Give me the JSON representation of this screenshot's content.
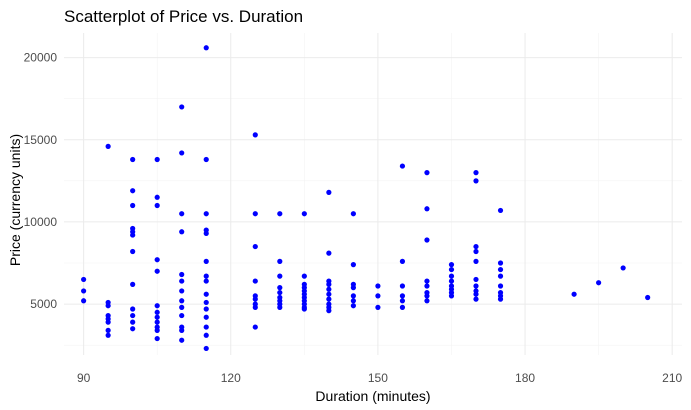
{
  "chart_data": {
    "type": "scatter",
    "title": "Scatterplot of Price vs. Duration",
    "xlabel": "Duration (minutes)",
    "ylabel": "Price (currency units)",
    "xlim": [
      86,
      212
    ],
    "ylim": [
      1900,
      21500
    ],
    "x_ticks": [
      90,
      120,
      150,
      180,
      210
    ],
    "y_ticks": [
      5000,
      10000,
      15000,
      20000
    ],
    "grid": true,
    "point_color": "#0000ff",
    "points": [
      {
        "x": 90,
        "y": 6500
      },
      {
        "x": 90,
        "y": 5800
      },
      {
        "x": 90,
        "y": 5200
      },
      {
        "x": 95,
        "y": 14600
      },
      {
        "x": 95,
        "y": 5100
      },
      {
        "x": 95,
        "y": 4900
      },
      {
        "x": 95,
        "y": 4300
      },
      {
        "x": 95,
        "y": 4100
      },
      {
        "x": 95,
        "y": 3900
      },
      {
        "x": 95,
        "y": 3400
      },
      {
        "x": 95,
        "y": 3100
      },
      {
        "x": 100,
        "y": 13800
      },
      {
        "x": 100,
        "y": 11900
      },
      {
        "x": 100,
        "y": 11000
      },
      {
        "x": 100,
        "y": 9600
      },
      {
        "x": 100,
        "y": 9400
      },
      {
        "x": 100,
        "y": 9200
      },
      {
        "x": 100,
        "y": 8200
      },
      {
        "x": 100,
        "y": 6200
      },
      {
        "x": 100,
        "y": 4700
      },
      {
        "x": 100,
        "y": 4300
      },
      {
        "x": 100,
        "y": 3900
      },
      {
        "x": 100,
        "y": 3500
      },
      {
        "x": 105,
        "y": 13800
      },
      {
        "x": 105,
        "y": 11500
      },
      {
        "x": 105,
        "y": 11000
      },
      {
        "x": 105,
        "y": 7700
      },
      {
        "x": 105,
        "y": 7000
      },
      {
        "x": 105,
        "y": 4900
      },
      {
        "x": 105,
        "y": 4500
      },
      {
        "x": 105,
        "y": 4200
      },
      {
        "x": 105,
        "y": 3900
      },
      {
        "x": 105,
        "y": 3600
      },
      {
        "x": 105,
        "y": 3400
      },
      {
        "x": 105,
        "y": 2900
      },
      {
        "x": 110,
        "y": 17000
      },
      {
        "x": 110,
        "y": 14200
      },
      {
        "x": 110,
        "y": 10500
      },
      {
        "x": 110,
        "y": 9400
      },
      {
        "x": 110,
        "y": 6800
      },
      {
        "x": 110,
        "y": 6400
      },
      {
        "x": 110,
        "y": 5800
      },
      {
        "x": 110,
        "y": 5200
      },
      {
        "x": 110,
        "y": 4800
      },
      {
        "x": 110,
        "y": 4300
      },
      {
        "x": 110,
        "y": 3600
      },
      {
        "x": 110,
        "y": 3400
      },
      {
        "x": 110,
        "y": 2800
      },
      {
        "x": 115,
        "y": 20600
      },
      {
        "x": 115,
        "y": 13800
      },
      {
        "x": 115,
        "y": 10500
      },
      {
        "x": 115,
        "y": 9500
      },
      {
        "x": 115,
        "y": 9300
      },
      {
        "x": 115,
        "y": 7600
      },
      {
        "x": 115,
        "y": 6700
      },
      {
        "x": 115,
        "y": 6400
      },
      {
        "x": 115,
        "y": 5600
      },
      {
        "x": 115,
        "y": 5100
      },
      {
        "x": 115,
        "y": 4700
      },
      {
        "x": 115,
        "y": 4200
      },
      {
        "x": 115,
        "y": 3600
      },
      {
        "x": 115,
        "y": 3100
      },
      {
        "x": 115,
        "y": 2300
      },
      {
        "x": 125,
        "y": 15300
      },
      {
        "x": 125,
        "y": 10500
      },
      {
        "x": 125,
        "y": 8500
      },
      {
        "x": 125,
        "y": 6400
      },
      {
        "x": 125,
        "y": 5500
      },
      {
        "x": 125,
        "y": 5300
      },
      {
        "x": 125,
        "y": 5000
      },
      {
        "x": 125,
        "y": 4800
      },
      {
        "x": 125,
        "y": 3600
      },
      {
        "x": 130,
        "y": 10500
      },
      {
        "x": 130,
        "y": 7600
      },
      {
        "x": 130,
        "y": 6700
      },
      {
        "x": 130,
        "y": 6000
      },
      {
        "x": 130,
        "y": 5700
      },
      {
        "x": 130,
        "y": 5400
      },
      {
        "x": 130,
        "y": 5200
      },
      {
        "x": 130,
        "y": 5000
      },
      {
        "x": 130,
        "y": 4800
      },
      {
        "x": 135,
        "y": 10500
      },
      {
        "x": 135,
        "y": 6700
      },
      {
        "x": 135,
        "y": 6200
      },
      {
        "x": 135,
        "y": 6000
      },
      {
        "x": 135,
        "y": 5800
      },
      {
        "x": 135,
        "y": 5600
      },
      {
        "x": 135,
        "y": 5400
      },
      {
        "x": 135,
        "y": 5200
      },
      {
        "x": 135,
        "y": 5000
      },
      {
        "x": 135,
        "y": 4800
      },
      {
        "x": 135,
        "y": 4700
      },
      {
        "x": 140,
        "y": 11800
      },
      {
        "x": 140,
        "y": 8100
      },
      {
        "x": 140,
        "y": 6400
      },
      {
        "x": 140,
        "y": 6200
      },
      {
        "x": 140,
        "y": 5900
      },
      {
        "x": 140,
        "y": 5600
      },
      {
        "x": 140,
        "y": 5300
      },
      {
        "x": 140,
        "y": 5000
      },
      {
        "x": 140,
        "y": 4800
      },
      {
        "x": 140,
        "y": 4600
      },
      {
        "x": 145,
        "y": 10500
      },
      {
        "x": 145,
        "y": 7400
      },
      {
        "x": 145,
        "y": 6200
      },
      {
        "x": 145,
        "y": 6000
      },
      {
        "x": 145,
        "y": 5500
      },
      {
        "x": 145,
        "y": 5200
      },
      {
        "x": 145,
        "y": 4900
      },
      {
        "x": 150,
        "y": 6100
      },
      {
        "x": 150,
        "y": 5500
      },
      {
        "x": 150,
        "y": 4800
      },
      {
        "x": 155,
        "y": 13400
      },
      {
        "x": 155,
        "y": 7600
      },
      {
        "x": 155,
        "y": 6100
      },
      {
        "x": 155,
        "y": 5500
      },
      {
        "x": 155,
        "y": 5200
      },
      {
        "x": 155,
        "y": 4800
      },
      {
        "x": 160,
        "y": 13000
      },
      {
        "x": 160,
        "y": 10800
      },
      {
        "x": 160,
        "y": 8900
      },
      {
        "x": 160,
        "y": 6400
      },
      {
        "x": 160,
        "y": 6100
      },
      {
        "x": 160,
        "y": 5700
      },
      {
        "x": 160,
        "y": 5500
      },
      {
        "x": 160,
        "y": 5200
      },
      {
        "x": 165,
        "y": 7400
      },
      {
        "x": 165,
        "y": 7100
      },
      {
        "x": 165,
        "y": 6700
      },
      {
        "x": 165,
        "y": 6400
      },
      {
        "x": 165,
        "y": 6100
      },
      {
        "x": 165,
        "y": 5900
      },
      {
        "x": 165,
        "y": 5700
      },
      {
        "x": 165,
        "y": 5500
      },
      {
        "x": 170,
        "y": 13000
      },
      {
        "x": 170,
        "y": 12500
      },
      {
        "x": 170,
        "y": 8500
      },
      {
        "x": 170,
        "y": 8200
      },
      {
        "x": 170,
        "y": 7600
      },
      {
        "x": 170,
        "y": 6500
      },
      {
        "x": 170,
        "y": 6100
      },
      {
        "x": 170,
        "y": 5800
      },
      {
        "x": 170,
        "y": 5600
      },
      {
        "x": 170,
        "y": 5300
      },
      {
        "x": 175,
        "y": 10700
      },
      {
        "x": 175,
        "y": 7500
      },
      {
        "x": 175,
        "y": 7100
      },
      {
        "x": 175,
        "y": 6700
      },
      {
        "x": 175,
        "y": 6100
      },
      {
        "x": 175,
        "y": 5700
      },
      {
        "x": 175,
        "y": 5500
      },
      {
        "x": 175,
        "y": 5300
      },
      {
        "x": 190,
        "y": 5600
      },
      {
        "x": 195,
        "y": 6300
      },
      {
        "x": 200,
        "y": 7200
      },
      {
        "x": 205,
        "y": 5400
      }
    ]
  }
}
